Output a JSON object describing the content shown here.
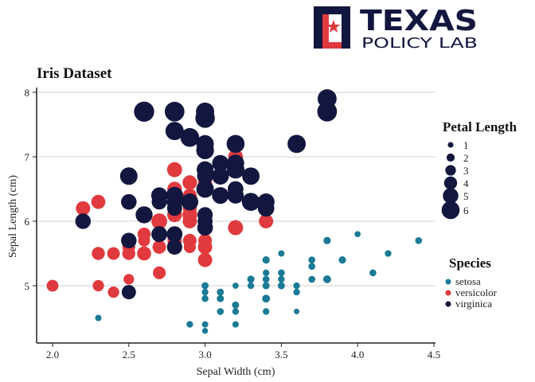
{
  "brand": {
    "name": "TEXAS",
    "subtitle": "POLICY LAB",
    "colors": {
      "navy": "#13163f",
      "red": "#e03a3e"
    }
  },
  "chart_data": {
    "type": "scatter",
    "title": "Iris Dataset",
    "xlabel": "Sepal Width (cm)",
    "ylabel": "Sepal Length (cm)",
    "xlim": [
      1.9,
      4.5
    ],
    "ylim": [
      4.2,
      8.1
    ],
    "xticks": [
      2.0,
      2.5,
      3.0,
      3.5,
      4.0,
      4.5
    ],
    "xtick_labels": [
      "2.0",
      "2.5",
      "3.0",
      "3.5",
      "4.0",
      "4.5"
    ],
    "yticks": [
      5,
      6,
      7,
      8
    ],
    "ytick_labels": [
      "5",
      "6",
      "7",
      "8"
    ],
    "grid": {
      "horizontal": true,
      "vertical": false
    },
    "size_legend": {
      "title": "Petal Length",
      "values": [
        1,
        2,
        3,
        4,
        5,
        6
      ],
      "labels": [
        "1",
        "2",
        "3",
        "4",
        "5",
        "6"
      ]
    },
    "color_legend": {
      "title": "Species",
      "placement": "right"
    },
    "series": [
      {
        "name": "setosa",
        "color": "#1b7a96",
        "points": [
          [
            3.5,
            5.1,
            1.4
          ],
          [
            3.0,
            4.9,
            1.4
          ],
          [
            3.2,
            4.7,
            1.3
          ],
          [
            3.1,
            4.6,
            1.5
          ],
          [
            3.6,
            5.0,
            1.4
          ],
          [
            3.9,
            5.4,
            1.7
          ],
          [
            3.4,
            4.6,
            1.4
          ],
          [
            3.4,
            5.0,
            1.5
          ],
          [
            2.9,
            4.4,
            1.4
          ],
          [
            3.1,
            4.9,
            1.5
          ],
          [
            3.7,
            5.4,
            1.5
          ],
          [
            3.4,
            4.8,
            1.6
          ],
          [
            3.0,
            4.8,
            1.4
          ],
          [
            3.0,
            4.3,
            1.1
          ],
          [
            4.0,
            5.8,
            1.2
          ],
          [
            4.4,
            5.7,
            1.5
          ],
          [
            3.9,
            5.4,
            1.3
          ],
          [
            3.5,
            5.1,
            1.4
          ],
          [
            3.8,
            5.7,
            1.7
          ],
          [
            3.8,
            5.1,
            1.5
          ],
          [
            3.4,
            5.4,
            1.7
          ],
          [
            3.7,
            5.1,
            1.5
          ],
          [
            3.6,
            4.6,
            1.0
          ],
          [
            3.3,
            5.1,
            1.7
          ],
          [
            3.4,
            4.8,
            1.9
          ],
          [
            3.0,
            5.0,
            1.6
          ],
          [
            3.4,
            5.0,
            1.6
          ],
          [
            3.5,
            5.2,
            1.5
          ],
          [
            3.4,
            5.2,
            1.4
          ],
          [
            3.2,
            4.7,
            1.6
          ],
          [
            3.1,
            4.8,
            1.6
          ],
          [
            3.4,
            5.4,
            1.5
          ],
          [
            4.1,
            5.2,
            1.5
          ],
          [
            4.2,
            5.5,
            1.4
          ],
          [
            3.1,
            4.9,
            1.5
          ],
          [
            3.2,
            5.0,
            1.2
          ],
          [
            3.5,
            5.5,
            1.3
          ],
          [
            3.6,
            4.9,
            1.4
          ],
          [
            3.0,
            4.4,
            1.3
          ],
          [
            3.4,
            5.1,
            1.5
          ],
          [
            3.5,
            5.0,
            1.3
          ],
          [
            2.3,
            4.5,
            1.3
          ],
          [
            3.2,
            4.4,
            1.3
          ],
          [
            3.5,
            5.0,
            1.6
          ],
          [
            3.8,
            5.1,
            1.9
          ],
          [
            3.0,
            4.8,
            1.4
          ],
          [
            3.8,
            5.1,
            1.6
          ],
          [
            3.2,
            4.6,
            1.4
          ],
          [
            3.7,
            5.3,
            1.5
          ],
          [
            3.3,
            5.0,
            1.4
          ]
        ]
      },
      {
        "name": "versicolor",
        "color": "#e03a3e",
        "points": [
          [
            3.2,
            7.0,
            4.7
          ],
          [
            3.2,
            6.4,
            4.5
          ],
          [
            3.1,
            6.9,
            4.9
          ],
          [
            2.3,
            5.5,
            4.0
          ],
          [
            2.8,
            6.5,
            4.6
          ],
          [
            2.8,
            5.7,
            4.5
          ],
          [
            3.3,
            6.3,
            4.7
          ],
          [
            2.4,
            4.9,
            3.3
          ],
          [
            2.9,
            6.6,
            4.6
          ],
          [
            2.7,
            5.2,
            3.9
          ],
          [
            2.0,
            5.0,
            3.5
          ],
          [
            3.0,
            5.9,
            4.2
          ],
          [
            2.2,
            6.0,
            4.0
          ],
          [
            2.9,
            6.1,
            4.7
          ],
          [
            2.9,
            5.6,
            3.6
          ],
          [
            3.1,
            6.7,
            4.4
          ],
          [
            3.0,
            5.6,
            4.5
          ],
          [
            2.7,
            5.8,
            4.1
          ],
          [
            2.2,
            6.2,
            4.5
          ],
          [
            2.5,
            5.6,
            3.9
          ],
          [
            3.2,
            5.9,
            4.8
          ],
          [
            2.8,
            6.1,
            4.0
          ],
          [
            2.5,
            6.3,
            4.9
          ],
          [
            2.8,
            6.1,
            4.7
          ],
          [
            2.9,
            6.4,
            4.3
          ],
          [
            3.0,
            6.6,
            4.4
          ],
          [
            2.8,
            6.8,
            4.8
          ],
          [
            3.0,
            6.7,
            5.0
          ],
          [
            2.9,
            6.0,
            4.5
          ],
          [
            2.6,
            5.7,
            3.5
          ],
          [
            2.4,
            5.5,
            3.8
          ],
          [
            2.4,
            5.5,
            3.7
          ],
          [
            2.7,
            5.8,
            3.9
          ],
          [
            2.7,
            6.0,
            5.1
          ],
          [
            3.0,
            5.4,
            4.5
          ],
          [
            3.4,
            6.0,
            4.5
          ],
          [
            3.1,
            6.7,
            4.7
          ],
          [
            2.3,
            6.3,
            4.4
          ],
          [
            3.0,
            5.6,
            4.1
          ],
          [
            2.5,
            5.5,
            4.0
          ],
          [
            2.6,
            5.5,
            4.4
          ],
          [
            3.0,
            6.1,
            4.6
          ],
          [
            2.6,
            5.8,
            4.0
          ],
          [
            2.3,
            5.0,
            3.3
          ],
          [
            2.7,
            5.6,
            4.2
          ],
          [
            3.0,
            5.7,
            4.2
          ],
          [
            2.9,
            5.7,
            4.2
          ],
          [
            2.9,
            6.2,
            4.3
          ],
          [
            2.5,
            5.1,
            3.0
          ],
          [
            2.8,
            5.7,
            4.1
          ]
        ]
      },
      {
        "name": "virginica",
        "color": "#13163f",
        "points": [
          [
            3.3,
            6.3,
            6.0
          ],
          [
            2.7,
            5.8,
            5.1
          ],
          [
            3.0,
            7.1,
            5.9
          ],
          [
            2.9,
            6.3,
            5.6
          ],
          [
            3.0,
            6.5,
            5.8
          ],
          [
            3.0,
            7.6,
            6.6
          ],
          [
            2.5,
            4.9,
            4.5
          ],
          [
            2.9,
            7.3,
            6.3
          ],
          [
            2.5,
            6.7,
            5.8
          ],
          [
            3.6,
            7.2,
            6.1
          ],
          [
            3.2,
            6.5,
            5.1
          ],
          [
            2.7,
            6.4,
            5.3
          ],
          [
            3.0,
            6.8,
            5.5
          ],
          [
            2.5,
            5.7,
            5.0
          ],
          [
            2.8,
            5.8,
            5.1
          ],
          [
            3.2,
            6.4,
            5.3
          ],
          [
            3.0,
            6.5,
            5.5
          ],
          [
            3.8,
            7.7,
            6.7
          ],
          [
            2.6,
            7.7,
            6.9
          ],
          [
            2.2,
            6.0,
            5.0
          ],
          [
            3.2,
            6.9,
            5.7
          ],
          [
            2.8,
            5.6,
            4.9
          ],
          [
            2.8,
            7.7,
            6.7
          ],
          [
            2.7,
            6.3,
            4.9
          ],
          [
            3.3,
            6.7,
            5.7
          ],
          [
            3.2,
            7.2,
            6.0
          ],
          [
            2.8,
            6.2,
            4.8
          ],
          [
            3.0,
            6.1,
            4.9
          ],
          [
            2.8,
            6.4,
            5.6
          ],
          [
            3.0,
            7.2,
            5.8
          ],
          [
            2.8,
            7.4,
            6.1
          ],
          [
            3.8,
            7.9,
            6.4
          ],
          [
            2.8,
            6.4,
            5.6
          ],
          [
            2.8,
            6.3,
            5.1
          ],
          [
            2.6,
            6.1,
            5.6
          ],
          [
            3.0,
            7.7,
            6.1
          ],
          [
            3.4,
            6.3,
            5.6
          ],
          [
            3.1,
            6.4,
            5.5
          ],
          [
            3.0,
            6.0,
            4.8
          ],
          [
            3.1,
            6.9,
            5.4
          ],
          [
            3.1,
            6.7,
            5.6
          ],
          [
            3.1,
            6.9,
            5.1
          ],
          [
            2.7,
            5.8,
            5.1
          ],
          [
            3.2,
            6.8,
            5.9
          ],
          [
            3.3,
            6.7,
            5.7
          ],
          [
            3.0,
            6.7,
            5.2
          ],
          [
            2.5,
            6.3,
            5.0
          ],
          [
            3.0,
            6.5,
            5.2
          ],
          [
            3.4,
            6.2,
            5.4
          ],
          [
            3.0,
            5.9,
            5.1
          ]
        ]
      }
    ]
  }
}
